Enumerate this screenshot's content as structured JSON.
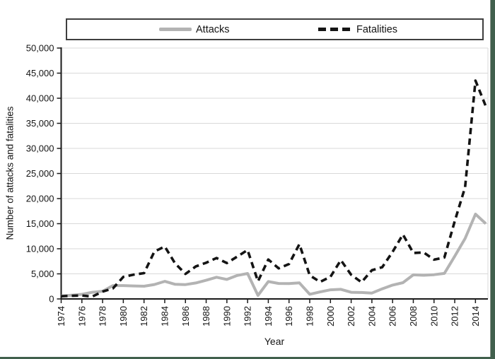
{
  "legend": {
    "items": [
      {
        "label": "Attacks",
        "style": "solid",
        "color": "#b3b3b3"
      },
      {
        "label": "Fatalities",
        "style": "dashed",
        "color": "#141414"
      }
    ]
  },
  "chart_data": {
    "type": "line",
    "title": "",
    "xlabel": "Year",
    "ylabel": "Number of attacks and fatalities",
    "ylim": [
      0,
      50000
    ],
    "ytick_step": 5000,
    "ytick_labels": [
      "0",
      "5,000",
      "10,000",
      "15,000",
      "20,000",
      "25,000",
      "30,000",
      "35,000",
      "40,000",
      "45,000",
      "50,000"
    ],
    "xtick_labels": [
      "1974",
      "1976",
      "1978",
      "1980",
      "1982",
      "1984",
      "1986",
      "1988",
      "1990",
      "1992",
      "1994",
      "1996",
      "1998",
      "2000",
      "2002",
      "2004",
      "2006",
      "2008",
      "2010",
      "2012",
      "2014"
    ],
    "grid": "horizontal",
    "legend_position": "top",
    "x": [
      1974,
      1975,
      1976,
      1977,
      1978,
      1979,
      1980,
      1981,
      1982,
      1983,
      1984,
      1985,
      1986,
      1987,
      1988,
      1989,
      1990,
      1991,
      1992,
      1993,
      1994,
      1995,
      1996,
      1997,
      1998,
      1999,
      2000,
      2001,
      2002,
      2003,
      2004,
      2005,
      2006,
      2007,
      2008,
      2009,
      2010,
      2011,
      2012,
      2013,
      2014,
      2015
    ],
    "series": [
      {
        "name": "Attacks",
        "color": "#b3b3b3",
        "dash": "solid",
        "values": [
          580,
          740,
          920,
          1320,
          1530,
          2660,
          2660,
          2590,
          2540,
          2870,
          3500,
          2920,
          2860,
          3180,
          3720,
          4320,
          3890,
          4680,
          5070,
          700,
          3460,
          3080,
          3060,
          3200,
          930,
          1400,
          1810,
          1910,
          1330,
          1280,
          1170,
          2020,
          2760,
          3240,
          4800,
          4720,
          4830,
          5080,
          8520,
          12040,
          16900,
          15000
        ]
      },
      {
        "name": "Fatalities",
        "color": "#141414",
        "dash": "dashed",
        "values": [
          540,
          620,
          670,
          460,
          1460,
          2100,
          4400,
          4850,
          5140,
          9440,
          10450,
          7090,
          4980,
          6480,
          7210,
          8150,
          7150,
          8430,
          9740,
          3500,
          7860,
          6100,
          6960,
          10920,
          4690,
          3390,
          4410,
          7730,
          4810,
          3320,
          5720,
          6330,
          9380,
          12840,
          9160,
          9270,
          7830,
          8250,
          15500,
          22270,
          43500,
          38400
        ]
      }
    ]
  },
  "frame": {
    "edge_color": "#41604d"
  }
}
